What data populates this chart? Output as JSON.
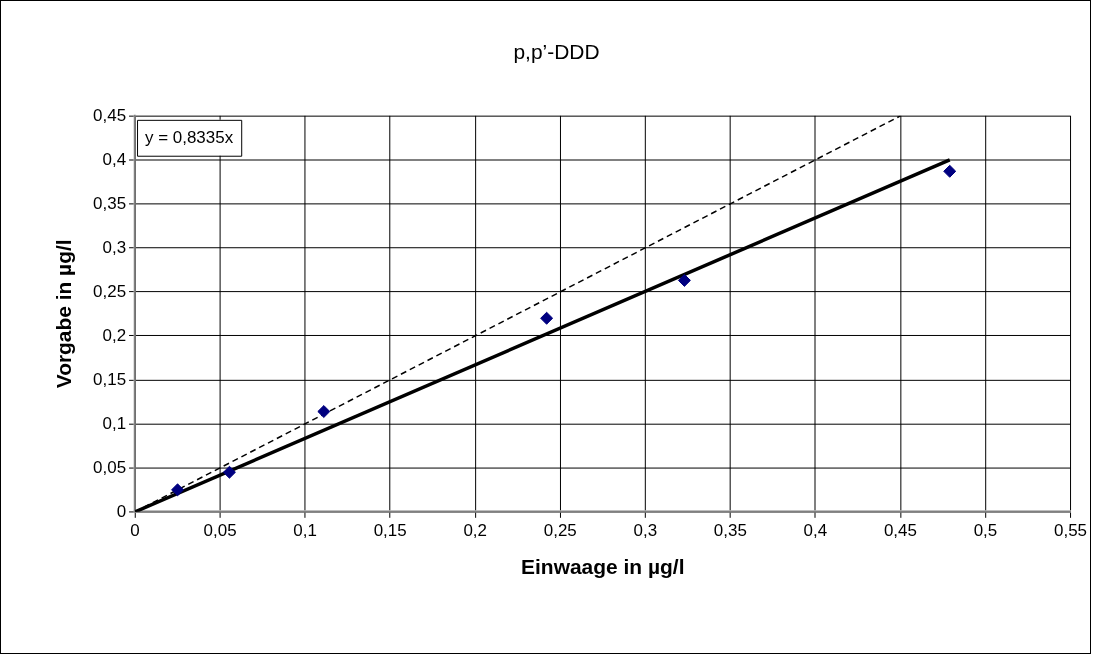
{
  "chart_data": {
    "type": "scatter",
    "title": "p,p’-DDD",
    "xlabel": "Einwaage in µg/l",
    "ylabel": "Vorgabe in µg/l",
    "annotations": [
      "y = 0,8335x"
    ],
    "series": [
      {
        "type": "scatter",
        "color": "#000080",
        "marker": "diamond",
        "x": [
          0.025,
          0.0555,
          0.111,
          0.242,
          0.323,
          0.479
        ],
        "values": [
          0.025,
          0.045,
          0.114,
          0.22,
          0.263,
          0.387
        ]
      },
      {
        "type": "line",
        "color": "#000000",
        "marker": "none",
        "line_style": "solid",
        "x": [
          0,
          0.479
        ],
        "values": [
          0,
          0.4
        ]
      },
      {
        "type": "line",
        "color": "#000000",
        "marker": "none",
        "line_style": "dashed",
        "x": [
          0,
          0.45
        ],
        "values": [
          0,
          0.45
        ]
      }
    ],
    "xlim": [
      0,
      0.55
    ],
    "ylim": [
      0,
      0.45
    ],
    "xticks": [
      0,
      {
        "value": 0.05,
        "label": "0,05"
      },
      {
        "value": 0.1,
        "label": "0,1"
      },
      {
        "value": 0.15,
        "label": "0,15"
      },
      {
        "value": 0.2,
        "label": "0,2"
      },
      {
        "value": 0.25,
        "label": "0,25"
      },
      {
        "value": 0.3,
        "label": "0,3"
      },
      {
        "value": 0.35,
        "label": "0,35"
      },
      {
        "value": 0.4,
        "label": "0,4"
      },
      {
        "value": 0.45,
        "label": "0,45"
      },
      {
        "value": 0.5,
        "label": "0,5"
      },
      {
        "value": 0.55,
        "label": "0,55"
      }
    ],
    "yticks": [
      0,
      {
        "value": 0.05,
        "label": "0,05"
      },
      {
        "value": 0.1,
        "label": "0,1"
      },
      {
        "value": 0.15,
        "label": "0,15"
      },
      {
        "value": 0.2,
        "label": "0,2"
      },
      {
        "value": 0.25,
        "label": "0,25"
      },
      {
        "value": 0.3,
        "label": "0,3"
      },
      {
        "value": 0.35,
        "label": "0,35"
      },
      {
        "value": 0.4,
        "label": "0,4"
      },
      {
        "value": 0.45,
        "label": "0,45"
      }
    ],
    "grid": true,
    "legend": false
  }
}
